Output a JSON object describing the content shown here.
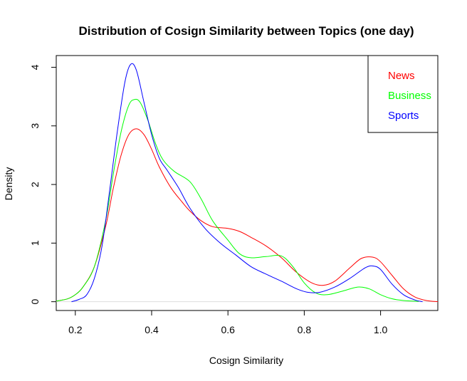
{
  "chart_data": {
    "type": "line",
    "title": "Distribution of Cosign Similarity between Topics (one day)",
    "xlabel": "Cosign Similarity",
    "ylabel": "Density",
    "xlim": [
      0.15,
      1.15
    ],
    "ylim": [
      -0.15,
      4.2
    ],
    "xticks": [
      0.2,
      0.4,
      0.6,
      0.8,
      1.0
    ],
    "xtick_labels": [
      "0.2",
      "0.4",
      "0.6",
      "0.8",
      "1.0"
    ],
    "yticks": [
      0,
      1,
      2,
      3,
      4
    ],
    "ytick_labels": [
      "0",
      "1",
      "2",
      "3",
      "4"
    ],
    "grid": false,
    "legend_position": "top-right",
    "series": [
      {
        "name": "News",
        "color": "#ff0000",
        "points": [
          [
            0.15,
            0.01
          ],
          [
            0.18,
            0.05
          ],
          [
            0.2,
            0.12
          ],
          [
            0.22,
            0.25
          ],
          [
            0.25,
            0.6
          ],
          [
            0.28,
            1.3
          ],
          [
            0.3,
            1.95
          ],
          [
            0.32,
            2.5
          ],
          [
            0.34,
            2.85
          ],
          [
            0.36,
            2.95
          ],
          [
            0.38,
            2.85
          ],
          [
            0.4,
            2.6
          ],
          [
            0.42,
            2.3
          ],
          [
            0.45,
            1.95
          ],
          [
            0.48,
            1.7
          ],
          [
            0.5,
            1.55
          ],
          [
            0.53,
            1.38
          ],
          [
            0.56,
            1.28
          ],
          [
            0.6,
            1.25
          ],
          [
            0.63,
            1.2
          ],
          [
            0.66,
            1.1
          ],
          [
            0.7,
            0.95
          ],
          [
            0.74,
            0.75
          ],
          [
            0.78,
            0.5
          ],
          [
            0.82,
            0.32
          ],
          [
            0.85,
            0.28
          ],
          [
            0.88,
            0.35
          ],
          [
            0.92,
            0.58
          ],
          [
            0.95,
            0.74
          ],
          [
            0.98,
            0.76
          ],
          [
            1.0,
            0.68
          ],
          [
            1.03,
            0.45
          ],
          [
            1.06,
            0.22
          ],
          [
            1.09,
            0.08
          ],
          [
            1.12,
            0.02
          ],
          [
            1.15,
            0.0
          ]
        ]
      },
      {
        "name": "Business",
        "color": "#00ff00",
        "points": [
          [
            0.15,
            0.01
          ],
          [
            0.18,
            0.05
          ],
          [
            0.2,
            0.12
          ],
          [
            0.22,
            0.25
          ],
          [
            0.25,
            0.6
          ],
          [
            0.28,
            1.4
          ],
          [
            0.3,
            2.2
          ],
          [
            0.32,
            2.9
          ],
          [
            0.34,
            3.35
          ],
          [
            0.355,
            3.45
          ],
          [
            0.37,
            3.4
          ],
          [
            0.39,
            3.1
          ],
          [
            0.41,
            2.7
          ],
          [
            0.43,
            2.42
          ],
          [
            0.46,
            2.22
          ],
          [
            0.5,
            2.05
          ],
          [
            0.53,
            1.75
          ],
          [
            0.56,
            1.38
          ],
          [
            0.6,
            1.05
          ],
          [
            0.63,
            0.82
          ],
          [
            0.66,
            0.75
          ],
          [
            0.7,
            0.77
          ],
          [
            0.74,
            0.78
          ],
          [
            0.77,
            0.6
          ],
          [
            0.8,
            0.32
          ],
          [
            0.83,
            0.15
          ],
          [
            0.86,
            0.12
          ],
          [
            0.9,
            0.18
          ],
          [
            0.94,
            0.25
          ],
          [
            0.97,
            0.22
          ],
          [
            1.0,
            0.12
          ],
          [
            1.03,
            0.05
          ],
          [
            1.06,
            0.02
          ],
          [
            1.1,
            0.005
          ]
        ]
      },
      {
        "name": "Sports",
        "color": "#0000ff",
        "points": [
          [
            0.19,
            0.0
          ],
          [
            0.21,
            0.04
          ],
          [
            0.23,
            0.12
          ],
          [
            0.25,
            0.4
          ],
          [
            0.27,
            0.95
          ],
          [
            0.29,
            1.9
          ],
          [
            0.31,
            2.9
          ],
          [
            0.33,
            3.75
          ],
          [
            0.345,
            4.05
          ],
          [
            0.36,
            3.95
          ],
          [
            0.38,
            3.4
          ],
          [
            0.4,
            2.85
          ],
          [
            0.42,
            2.45
          ],
          [
            0.44,
            2.25
          ],
          [
            0.47,
            1.95
          ],
          [
            0.5,
            1.6
          ],
          [
            0.54,
            1.25
          ],
          [
            0.58,
            1.0
          ],
          [
            0.62,
            0.8
          ],
          [
            0.66,
            0.6
          ],
          [
            0.7,
            0.47
          ],
          [
            0.74,
            0.35
          ],
          [
            0.78,
            0.22
          ],
          [
            0.81,
            0.16
          ],
          [
            0.84,
            0.16
          ],
          [
            0.88,
            0.25
          ],
          [
            0.92,
            0.4
          ],
          [
            0.96,
            0.58
          ],
          [
            0.98,
            0.61
          ],
          [
            1.0,
            0.55
          ],
          [
            1.03,
            0.3
          ],
          [
            1.06,
            0.12
          ],
          [
            1.09,
            0.03
          ],
          [
            1.11,
            0.0
          ]
        ]
      }
    ]
  }
}
